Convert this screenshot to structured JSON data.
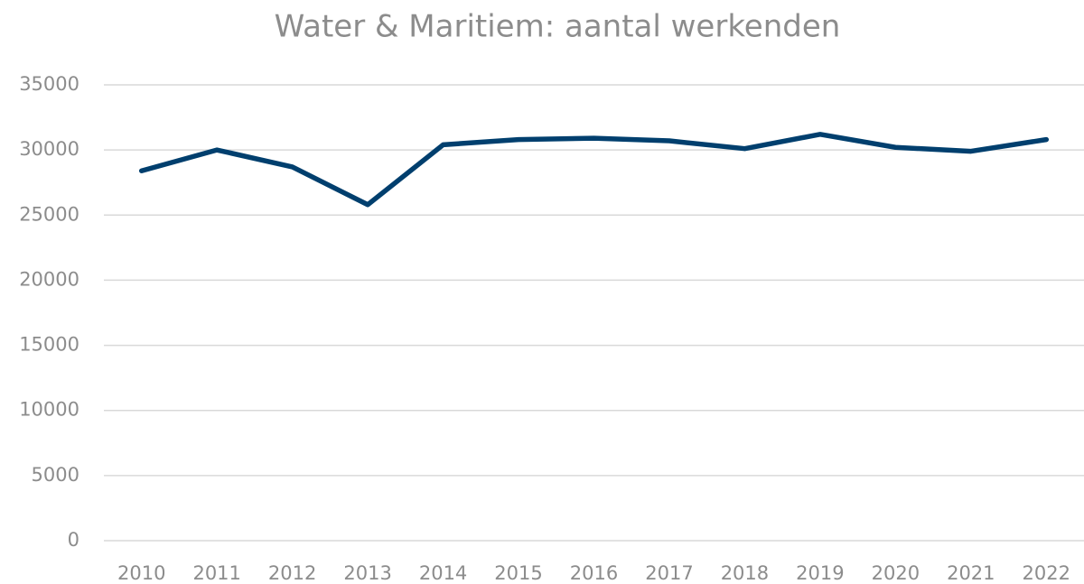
{
  "chart_data": {
    "type": "line",
    "title": "Water & Maritiem: aantal werkenden",
    "categories": [
      "2010",
      "2011",
      "2012",
      "2013",
      "2014",
      "2015",
      "2016",
      "2017",
      "2018",
      "2019",
      "2020",
      "2021",
      "2022"
    ],
    "series": [
      {
        "name": "aantal werkenden",
        "color": "#003f6e",
        "values": [
          28400,
          30000,
          28700,
          25800,
          30400,
          30800,
          30900,
          30700,
          30100,
          31200,
          30200,
          29900,
          30800
        ]
      }
    ],
    "ylim": [
      0,
      35000
    ],
    "yticks": [
      0,
      5000,
      10000,
      15000,
      20000,
      25000,
      30000,
      35000
    ],
    "grid": true,
    "legend": false
  }
}
